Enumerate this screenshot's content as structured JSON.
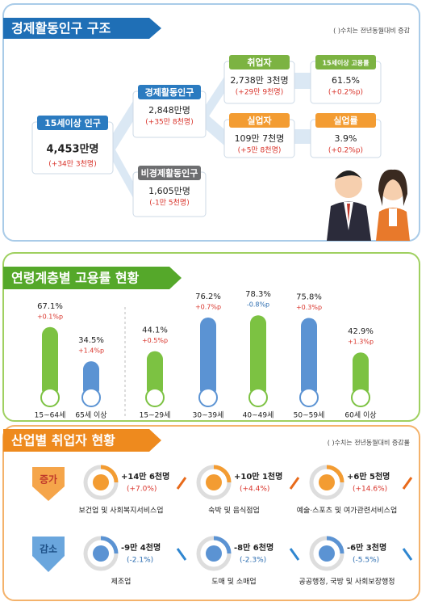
{
  "economic_structure": {
    "title": "경제활동인구 구조",
    "note": "( )수치는 전년동월대비 증감",
    "nodes": [
      {
        "label": "15세이상 인구",
        "value": "4,453만명",
        "change": "(+34만 3천명)"
      },
      {
        "label": "경제활동인구",
        "value": "2,848만명",
        "change": "(+35만 8천명)"
      },
      {
        "label": "비경제활동인구",
        "value": "1,605만명",
        "change": "(-1만 5천명)"
      },
      {
        "label": "취업자",
        "value": "2,738만 3천명",
        "change": "(+29만 9천명)"
      },
      {
        "label": "실업자",
        "value": "109만 7천명",
        "change": "(+5만 8천명)"
      },
      {
        "label": "15세이상 고용률",
        "value": "61.5%",
        "change": "(+0.2%p)"
      },
      {
        "label": "실업률",
        "value": "3.9%",
        "change": "(+0.2%p)"
      }
    ]
  },
  "chart_data": {
    "type": "bar",
    "title": "연령계층별 고용률 현황",
    "categories": [
      "15~64세",
      "65세 이상",
      "15~29세",
      "30~39세",
      "40~49세",
      "50~59세",
      "60세 이상"
    ],
    "values": [
      67.1,
      34.5,
      44.1,
      76.2,
      78.3,
      75.8,
      42.9
    ],
    "value_labels": [
      "67.1%",
      "34.5%",
      "44.1%",
      "76.2%",
      "78.3%",
      "75.8%",
      "42.9%"
    ],
    "change_labels": [
      "+0.1%p",
      "+1.4%p",
      "+0.5%p",
      "+0.7%p",
      "-0.8%p",
      "+0.3%p",
      "+1.3%p"
    ],
    "colors": [
      "#7cc242",
      "#5b93d3",
      "#7cc242",
      "#5b93d3",
      "#7cc242",
      "#5b93d3",
      "#7cc242"
    ]
  },
  "industry": {
    "title": "산업별 취업자 현황",
    "note": "( )수치는 전년동월대비 증감률",
    "increase": {
      "label": "증가",
      "items": [
        {
          "name": "보건업 및 사회복지서비스업",
          "value": "+14만 6천명",
          "change": "(+7.0%)"
        },
        {
          "name": "숙박 및 음식점업",
          "value": "+10만 1천명",
          "change": "(+4.4%)"
        },
        {
          "name": "예술·스포츠 및 여가관련서비스업",
          "value": "+6만 5천명",
          "change": "(+14.6%)"
        }
      ]
    },
    "decrease": {
      "label": "감소",
      "items": [
        {
          "name": "제조업",
          "value": "-9만 4천명",
          "change": "(-2.1%)"
        },
        {
          "name": "도매 및 소매업",
          "value": "-8만 6천명",
          "change": "(-2.3%)"
        },
        {
          "name": "공공행정, 국방 및 사회보장행정",
          "value": "-6만 3천명",
          "change": "(-5.5%)"
        }
      ]
    }
  }
}
